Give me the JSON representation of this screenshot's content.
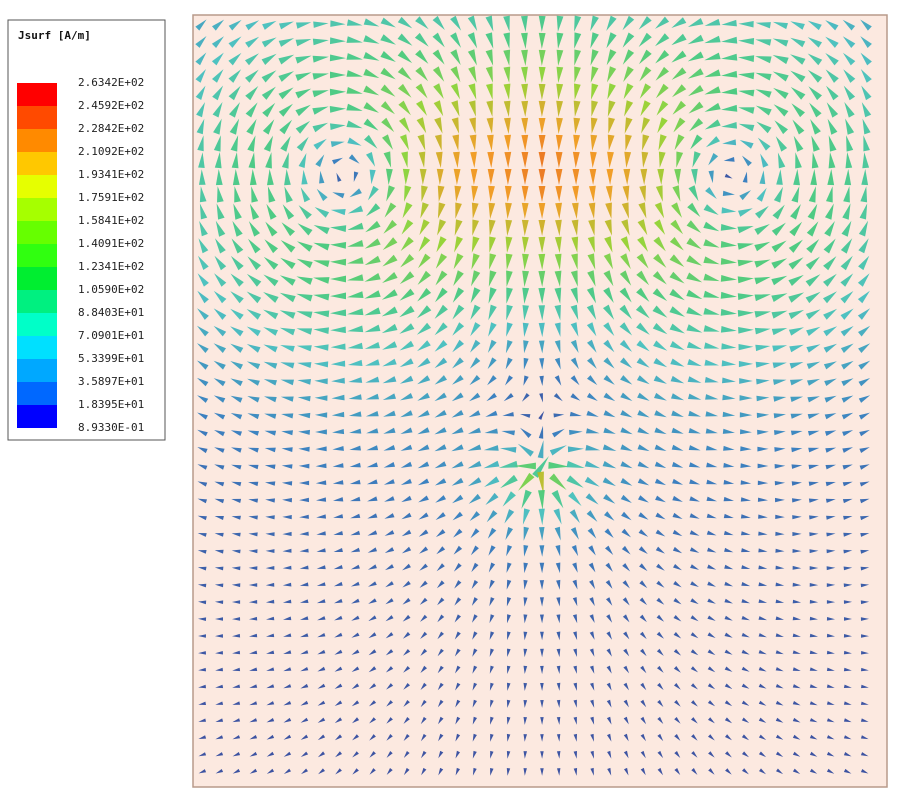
{
  "legend": {
    "title": "Jsurf [A/m]",
    "labels": [
      "2.6342E+02",
      "2.4592E+02",
      "2.2842E+02",
      "2.1092E+02",
      "1.9341E+02",
      "1.7591E+02",
      "1.5841E+02",
      "1.4091E+02",
      "1.2341E+02",
      "1.0590E+02",
      "8.8403E+01",
      "7.0901E+01",
      "5.3399E+01",
      "3.5897E+01",
      "1.8395E+01",
      "8.9330E-01"
    ]
  }
}
